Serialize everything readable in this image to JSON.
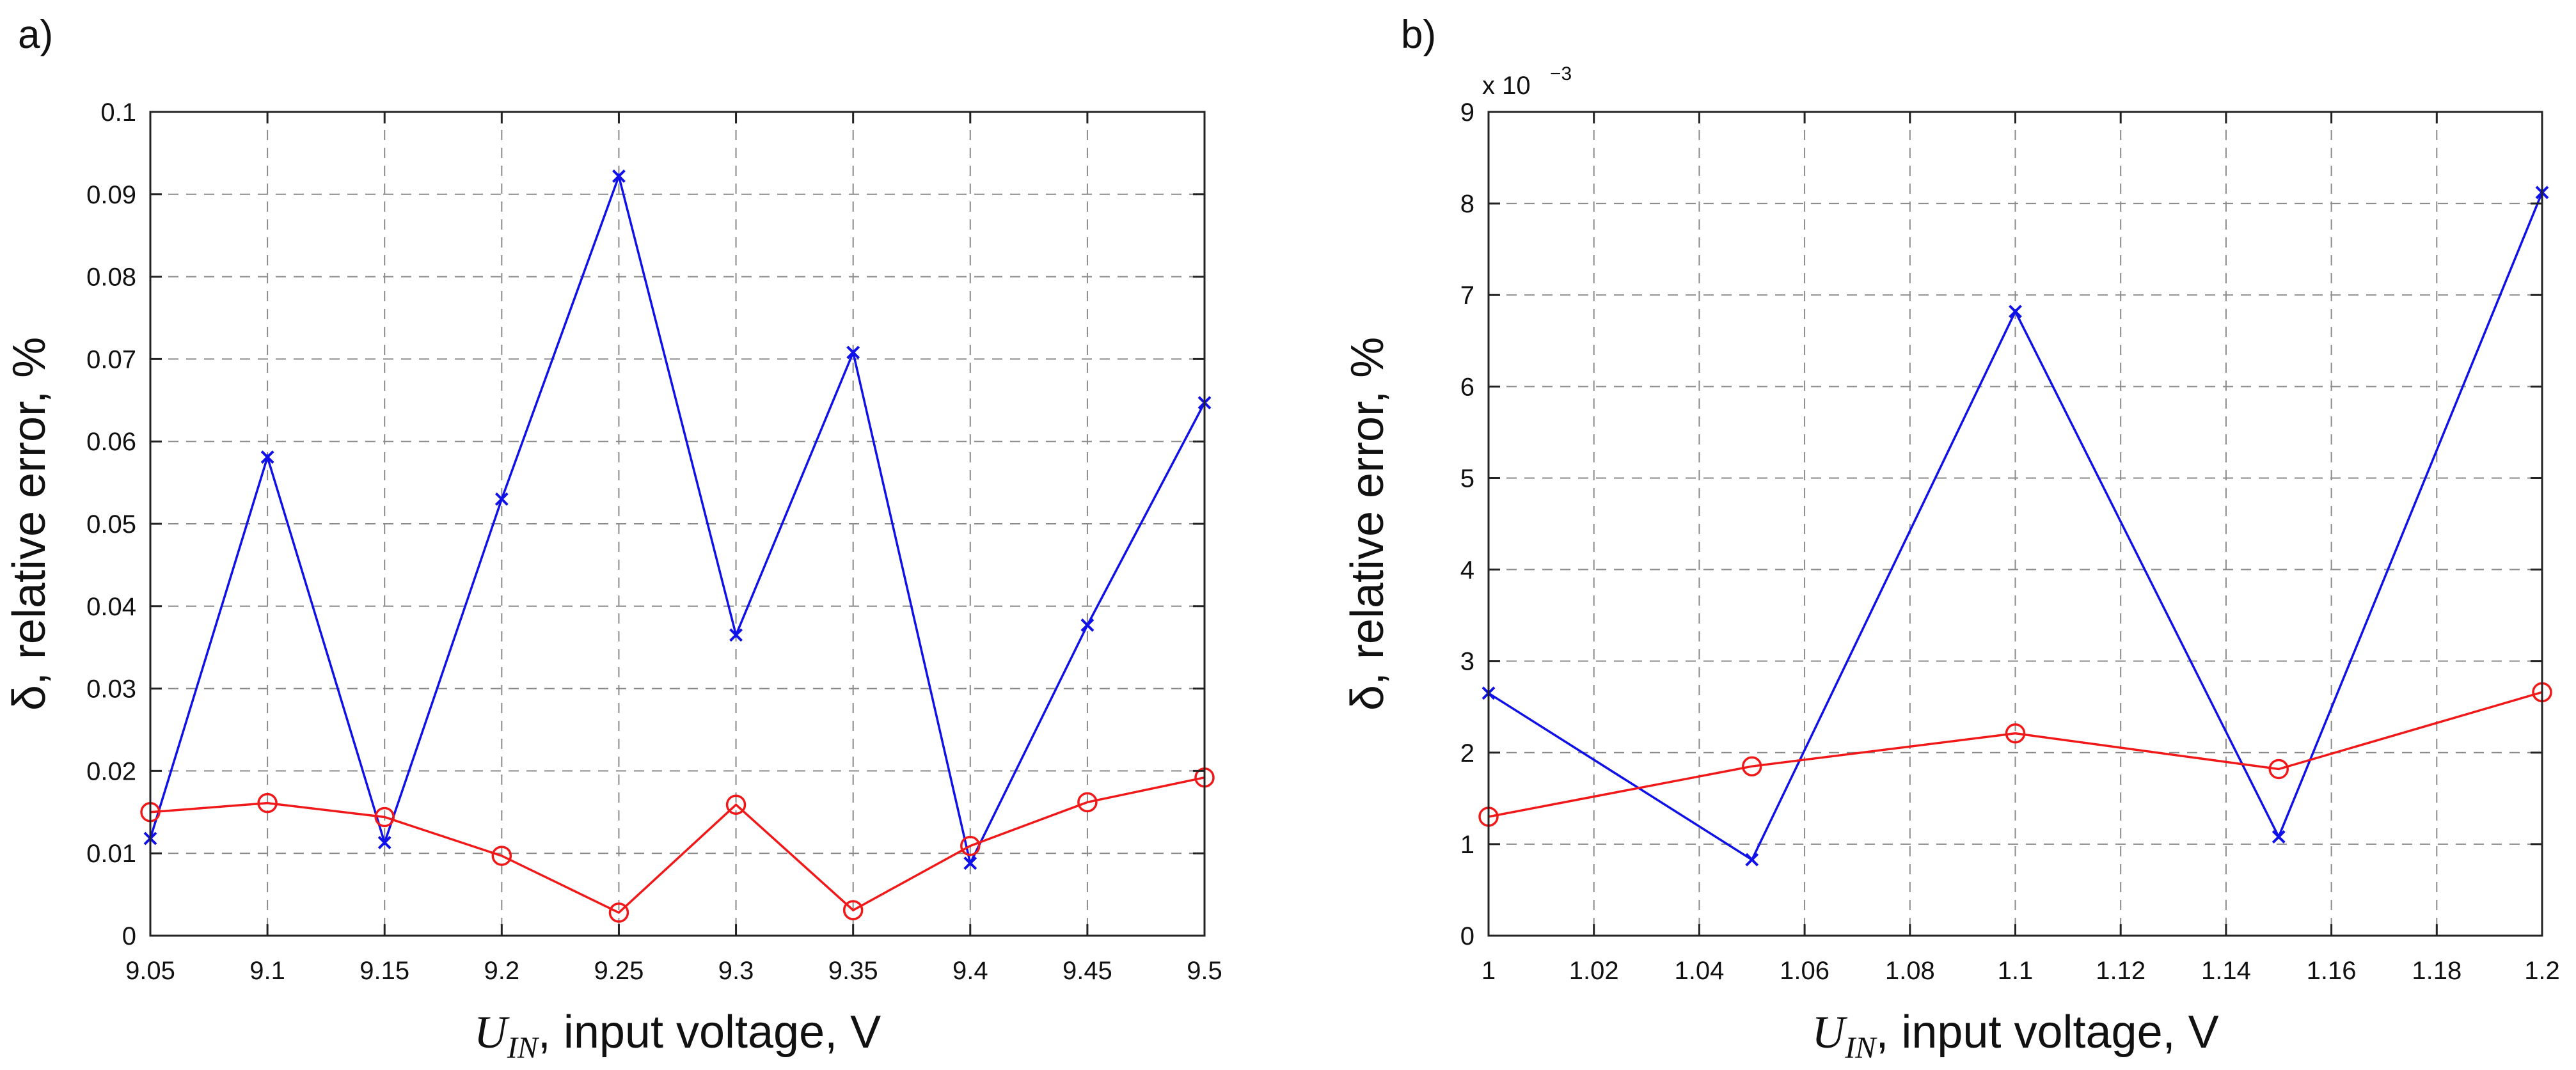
{
  "chart_data": [
    {
      "panel_label": "a)",
      "type": "line",
      "title": "",
      "xlabel_var": "U",
      "xlabel_sub": "IN",
      "xlabel_rest": ", input voltage, V",
      "ylabel": "δ, relative error, %",
      "xlim": [
        9.05,
        9.5
      ],
      "ylim": [
        0,
        0.1
      ],
      "x_ticks": [
        9.05,
        9.1,
        9.15,
        9.2,
        9.25,
        9.3,
        9.35,
        9.4,
        9.45,
        9.5
      ],
      "x_tick_labels": [
        "9.05",
        "9.1",
        "9.15",
        "9.2",
        "9.25",
        "9.3",
        "9.35",
        "9.4",
        "9.45",
        "9.5"
      ],
      "y_ticks": [
        0,
        0.01,
        0.02,
        0.03,
        0.04,
        0.05,
        0.06,
        0.07,
        0.08,
        0.09,
        0.1
      ],
      "y_tick_labels": [
        "0",
        "0.01",
        "0.02",
        "0.03",
        "0.04",
        "0.05",
        "0.06",
        "0.07",
        "0.08",
        "0.09",
        "0.1"
      ],
      "exponent_label": "",
      "grid": true,
      "x": [
        9.05,
        9.1,
        9.15,
        9.2,
        9.25,
        9.3,
        9.35,
        9.4,
        9.45,
        9.5
      ],
      "series": [
        {
          "name": "series-blue",
          "color": "#1010e8",
          "marker": "x",
          "values": [
            0.0118,
            0.0581,
            0.0113,
            0.053,
            0.0922,
            0.0365,
            0.0708,
            0.0088,
            0.0377,
            0.0647
          ]
        },
        {
          "name": "series-red",
          "color": "#f01818",
          "marker": "o",
          "values": [
            0.015,
            0.0161,
            0.0144,
            0.0097,
            0.0028,
            0.0159,
            0.0031,
            0.0109,
            0.0162,
            0.0192
          ]
        }
      ]
    },
    {
      "panel_label": "b)",
      "type": "line",
      "title": "",
      "xlabel_var": "U",
      "xlabel_sub": "IN",
      "xlabel_rest": ", input voltage, V",
      "ylabel": "δ, relative error, %",
      "xlim": [
        1.0,
        1.2
      ],
      "ylim": [
        0,
        9
      ],
      "x_ticks": [
        1.0,
        1.02,
        1.04,
        1.06,
        1.08,
        1.1,
        1.12,
        1.14,
        1.16,
        1.18,
        1.2
      ],
      "x_tick_labels": [
        "1",
        "1.02",
        "1.04",
        "1.06",
        "1.08",
        "1.1",
        "1.12",
        "1.14",
        "1.16",
        "1.18",
        "1.2"
      ],
      "y_ticks": [
        0,
        1,
        2,
        3,
        4,
        5,
        6,
        7,
        8,
        9
      ],
      "y_tick_labels": [
        "0",
        "1",
        "2",
        "3",
        "4",
        "5",
        "6",
        "7",
        "8",
        "9"
      ],
      "exponent_label": "x 10",
      "exponent_power": "−3",
      "grid": true,
      "x": [
        1.0,
        1.05,
        1.1,
        1.15,
        1.2
      ],
      "series": [
        {
          "name": "series-blue",
          "color": "#1010e8",
          "marker": "x",
          "values": [
            2.65,
            0.83,
            6.82,
            1.08,
            8.12
          ]
        },
        {
          "name": "series-red",
          "color": "#f01818",
          "marker": "o",
          "values": [
            1.3,
            1.85,
            2.21,
            1.82,
            2.66
          ]
        }
      ]
    }
  ]
}
